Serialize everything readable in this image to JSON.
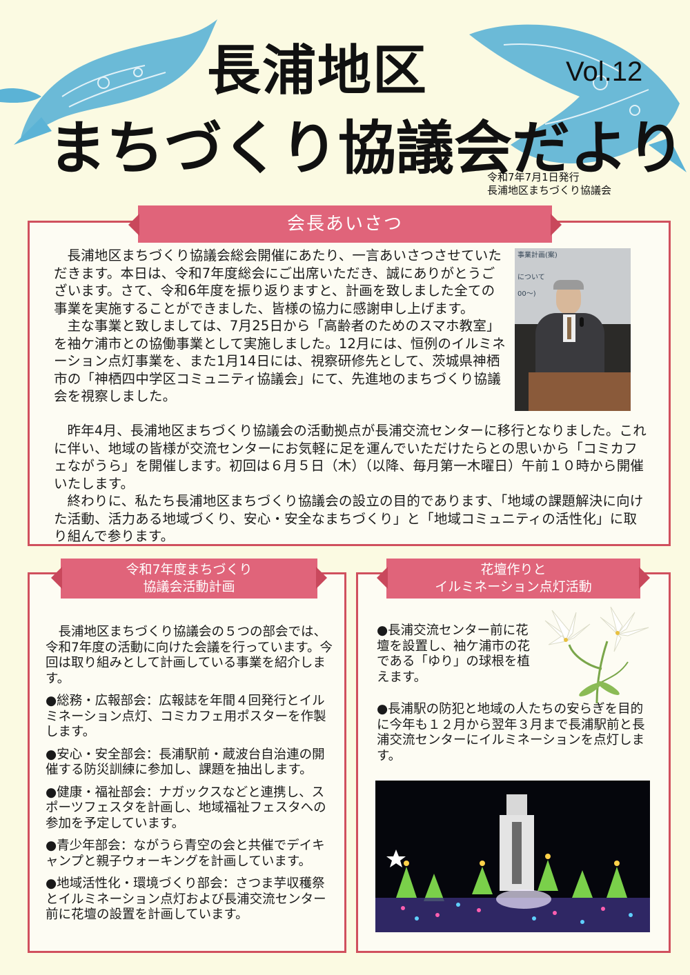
{
  "masthead": {
    "title_line1": "長浦地区",
    "title_line2": "まちづくり協議会だより",
    "volume": "Vol.12",
    "issue_date": "令和7年7月1日発行",
    "publisher": "長浦地区まちづくり協議会"
  },
  "greeting": {
    "heading": "会長あいさつ",
    "paragraphs": [
      "長浦地区まちづくり協議会総会開催にあたり、一言あいさつさせていただきます。本日は、令和7年度総会にご出席いただき、誠にありがとうございます。さて、令和6年度を振り返りますと、計画を致しました全ての事業を実施することができました、皆様の協力に感謝申し上げます。",
      "主な事業と致しましては、7月25日から「高齢者のためのスマホ教室」を袖ケ浦市との協働事業として実施しました。12月には、恒例のイルミネーション点灯事業を、また1月14日には、視察研修先として、茨城県神栖市の「神栖四中学区コミュニティ協議会」にて、先進地のまちづくり協議会を視察しました。",
      "昨年4月、長浦地区まちづくり協議会の活動拠点が長浦交流センターに移行となりました。これに伴い、地域の皆様が交流センターにお気軽に足を運んでいただけたらとの思いから「コミカフェながうら」を開催します。初回は６月５日（木）（以降、毎月第一木曜日）午前１０時から開催いたします。",
      "終わりに、私たち長浦地区まちづくり協議会の設立の目的であります、「地域の課題解決に向けた活動、活力ある地域づくり、安心・安全なまちづくり」と「地域コミュニティの活性化」に取り組んで参ります。"
    ],
    "photo_screen_line1": "事業計画(案)",
    "photo_screen_line2": "について",
    "photo_screen_line3": "00〜)"
  },
  "plan": {
    "heading_line1": "令和7年度まちづくり",
    "heading_line2": "協議会活動計画",
    "intro": "長浦地区まちづくり協議会の５つの部会では、令和7年度の活動に向けた会議を行っています。今回は取り組みとして計画している事業を紹介します。",
    "items": [
      "●総務・広報部会：広報誌を年間４回発行とイルミネーション点灯、コミカフェ用ポスターを作製します。",
      "●安心・安全部会：長浦駅前・蔵波台自治連の開催する防災訓練に参加し、課題を抽出します。",
      "●健康・福祉部会：ナガックスなどと連携し、スポーツフェスタを計画し、地域福祉フェスタへの参加を予定しています。",
      "●青少年部会：ながうら青空の会と共催でデイキャンプと親子ウォーキングを計画しています。",
      "●地域活性化・環境づくり部会：さつま芋収穫祭とイルミネーション点灯および長浦交流センター前に花壇の設置を計画しています。"
    ]
  },
  "flower": {
    "heading_line1": "花壇作りと",
    "heading_line2": "イルミネーション点灯活動",
    "item1": "●長浦交流センター前に花壇を設置し、袖ケ浦市の花である「ゆり」の球根を植えます。",
    "item2": "●長浦駅の防犯と地域の人たちの安らぎを目的に今年も１２月から翌年３月まで長浦駅前と長浦交流センターにイルミネーションを点灯します。"
  },
  "colors": {
    "accent": "#e0647a",
    "border": "#d0505e",
    "paper": "#fbfae2",
    "whale": "#5bb3d6"
  }
}
